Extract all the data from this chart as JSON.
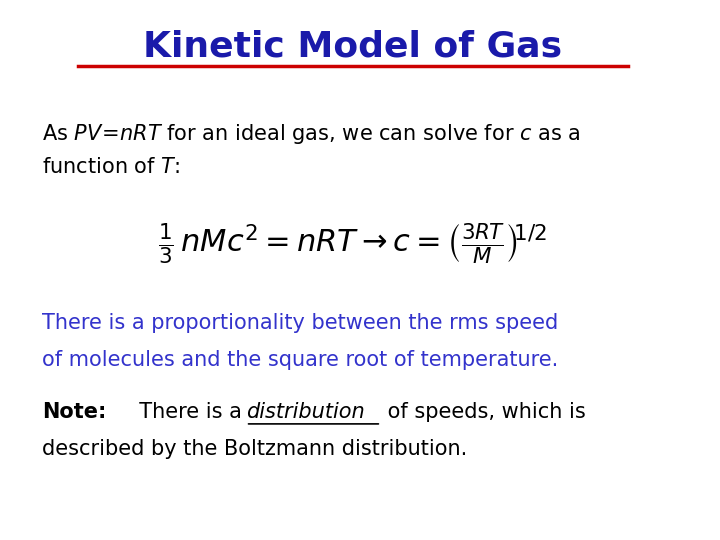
{
  "title": "Kinetic Model of Gas",
  "title_color": "#1a1aaa",
  "title_underline_color": "#cc0000",
  "background_color": "#ffffff",
  "green_text_line1": "There is a proportionality between the rms speed",
  "green_text_line2": "of molecules and the square root of temperature.",
  "green_color": "#3333cc",
  "note_color": "#000000",
  "fig_width": 7.2,
  "fig_height": 5.4,
  "dpi": 100,
  "body_fontsize": 15,
  "eq_fontsize": 22,
  "title_fontsize": 26
}
